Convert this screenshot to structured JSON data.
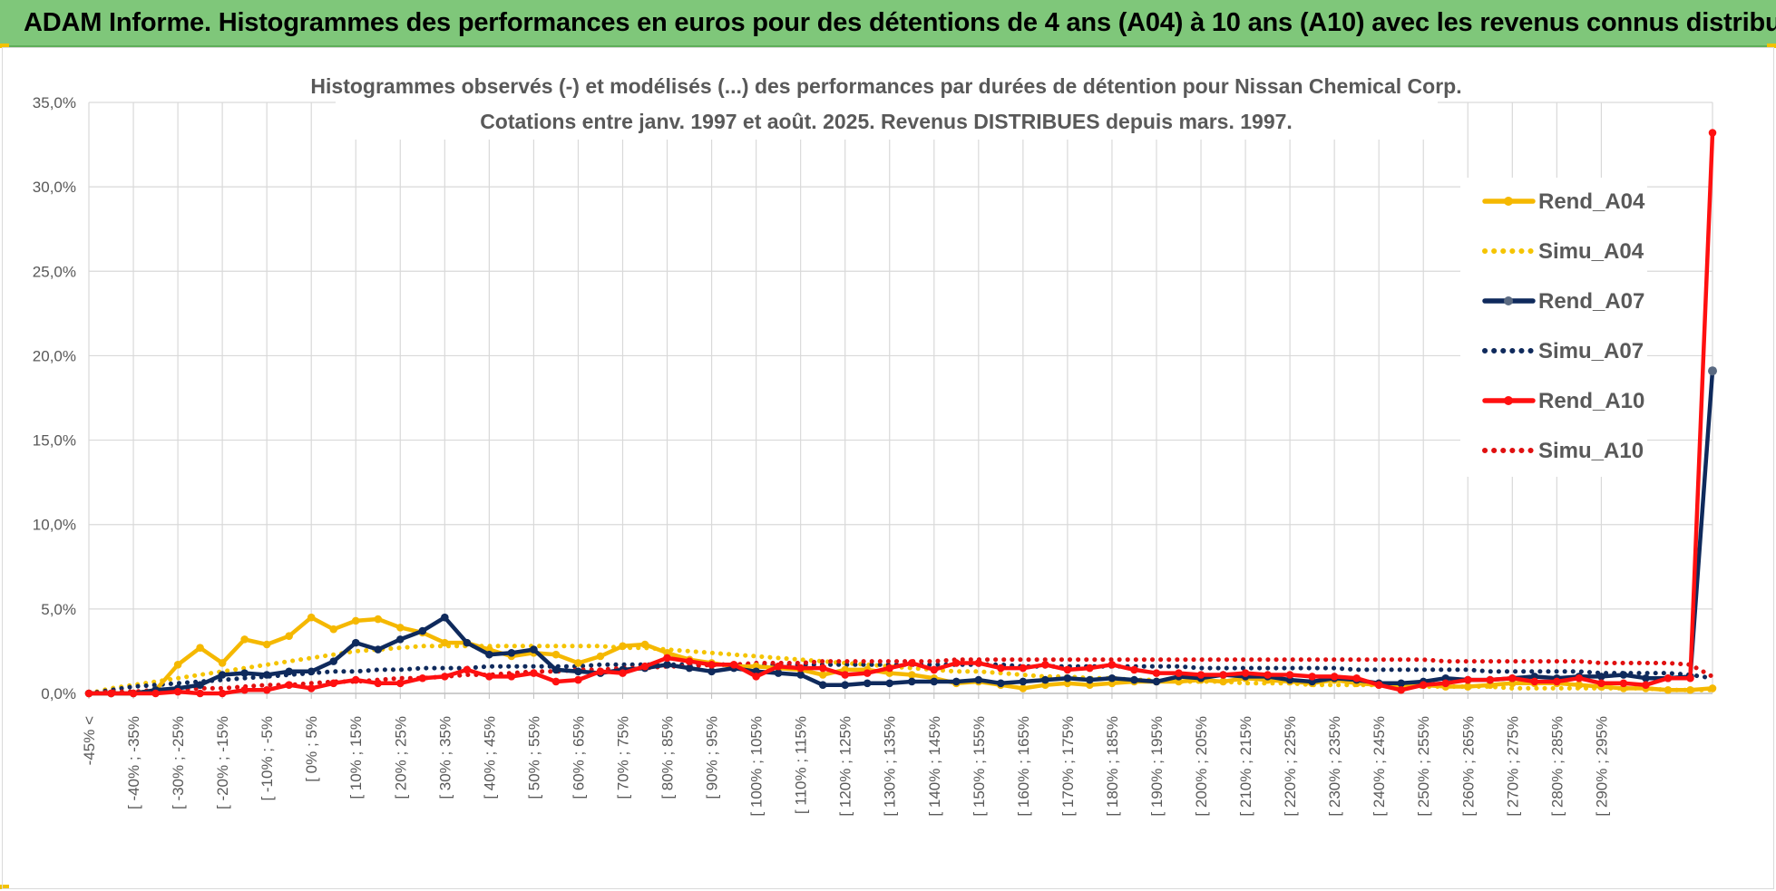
{
  "banner": {
    "title": "ADAM Informe. Histogrammes des performances en euros pour des détentions de 4 ans (A04) à 10 ans (A10) avec les revenus connus distribués"
  },
  "colors": {
    "banner_bg": "#7fc77a",
    "rend_a04": "#f5b800",
    "simu_a04": "#f5c400",
    "rend_a07": "#0f2a5c",
    "simu_a07": "#0f2a5c",
    "rend_a10": "#ff1010",
    "simu_a10": "#e01010",
    "grid": "#d9d9d9"
  },
  "chart_data": {
    "type": "line",
    "title": "Histogrammes observés (-) et modélisés (...) des performances par durées de détention pour Nissan Chemical Corp.",
    "subtitle": "Cotations entre janv. 1997 et août. 2025. Revenus DISTRIBUES depuis mars. 1997.",
    "xlabel": "",
    "ylabel": "",
    "ylim": [
      0,
      35
    ],
    "y_ticks": [
      "0,0%",
      "5,0%",
      "10,0%",
      "15,0%",
      "20,0%",
      "25,0%",
      "30,0%",
      "35,0%"
    ],
    "grid": true,
    "legend_position": "top-right",
    "x_labels": [
      "-45% <",
      "[ -40% ; -35%",
      "[ -30% ; -25%",
      "[ -20% ; -15%",
      "[ -10% ; -5%",
      "[ 0% ; 5%",
      "[ 10% ; 15%",
      "[ 20% ; 25%",
      "[ 30% ; 35%",
      "[ 40% ; 45%",
      "[ 50% ; 55%",
      "[ 60% ; 65%",
      "[ 70% ; 75%",
      "[ 80% ; 85%",
      "[ 90% ; 95%",
      "[ 100% ; 105%",
      "[ 110% ; 115%",
      "[ 120% ; 125%",
      "[ 130% ; 135%",
      "[ 140% ; 145%",
      "[ 150% ; 155%",
      "[ 160% ; 165%",
      "[ 170% ; 175%",
      "[ 180% ; 185%",
      "[ 190% ; 195%",
      "[ 200% ; 205%",
      "[ 210% ; 215%",
      "[ 220% ; 225%",
      "[ 230% ; 235%",
      "[ 240% ; 245%",
      "[ 250% ; 255%",
      "[ 260% ; 265%",
      "[ 270% ; 275%",
      "[ 280% ; 285%",
      "[ 290% ; 295%"
    ],
    "series": [
      {
        "name": "Rend_A04",
        "style": "solid-markers",
        "values": [
          0.0,
          0.0,
          0.0,
          0.2,
          1.7,
          2.7,
          1.8,
          3.2,
          2.9,
          3.4,
          4.5,
          3.8,
          4.3,
          4.4,
          3.9,
          3.6,
          3.0,
          3.0,
          2.6,
          2.2,
          2.4,
          2.3,
          1.8,
          2.2,
          2.8,
          2.9,
          2.4,
          2.0,
          1.8,
          1.6,
          1.6,
          1.5,
          1.4,
          1.1,
          1.4,
          1.4,
          1.2,
          1.1,
          0.9,
          0.6,
          0.7,
          0.5,
          0.3,
          0.5,
          0.6,
          0.5,
          0.6,
          0.7,
          0.7,
          0.7,
          0.8,
          0.7,
          0.9,
          0.8,
          0.7,
          0.6,
          0.8,
          0.6,
          0.5,
          0.4,
          0.5,
          0.4,
          0.4,
          0.5,
          0.6,
          0.6,
          0.6,
          0.5,
          0.4,
          0.3,
          0.3,
          0.2,
          0.2,
          0.3
        ]
      },
      {
        "name": "Simu_A04",
        "style": "dotted",
        "values": [
          0.0,
          0.3,
          0.5,
          0.7,
          0.9,
          1.1,
          1.3,
          1.5,
          1.7,
          1.9,
          2.1,
          2.3,
          2.5,
          2.6,
          2.7,
          2.8,
          2.8,
          2.8,
          2.8,
          2.8,
          2.8,
          2.8,
          2.8,
          2.8,
          2.7,
          2.7,
          2.6,
          2.5,
          2.4,
          2.3,
          2.2,
          2.1,
          2.0,
          1.9,
          1.8,
          1.7,
          1.6,
          1.5,
          1.4,
          1.3,
          1.3,
          1.2,
          1.1,
          1.0,
          1.0,
          0.9,
          0.9,
          0.8,
          0.8,
          0.7,
          0.7,
          0.7,
          0.6,
          0.6,
          0.6,
          0.5,
          0.5,
          0.5,
          0.5,
          0.4,
          0.4,
          0.4,
          0.4,
          0.4,
          0.3,
          0.3,
          0.3,
          0.3,
          0.3,
          0.3,
          0.3,
          0.2,
          0.2,
          0.2
        ]
      },
      {
        "name": "Rend_A07",
        "style": "solid-markers",
        "values": [
          0.0,
          0.0,
          0.0,
          0.2,
          0.3,
          0.5,
          1.1,
          1.2,
          1.1,
          1.3,
          1.3,
          1.9,
          3.0,
          2.6,
          3.2,
          3.7,
          4.5,
          3.0,
          2.3,
          2.4,
          2.6,
          1.4,
          1.3,
          1.2,
          1.4,
          1.5,
          1.7,
          1.5,
          1.3,
          1.5,
          1.3,
          1.2,
          1.1,
          0.5,
          0.5,
          0.6,
          0.6,
          0.7,
          0.7,
          0.7,
          0.8,
          0.6,
          0.7,
          0.8,
          0.9,
          0.8,
          0.9,
          0.8,
          0.7,
          1.0,
          0.9,
          1.1,
          1.0,
          1.0,
          0.8,
          0.7,
          0.9,
          0.8,
          0.6,
          0.6,
          0.7,
          0.9,
          0.8,
          0.8,
          0.9,
          1.0,
          0.9,
          1.0,
          1.0,
          1.1,
          0.9,
          0.9,
          1.0,
          19.1
        ]
      },
      {
        "name": "Simu_A07",
        "style": "dotted",
        "values": [
          0.0,
          0.2,
          0.4,
          0.5,
          0.6,
          0.7,
          0.8,
          0.9,
          1.0,
          1.1,
          1.2,
          1.3,
          1.3,
          1.4,
          1.4,
          1.5,
          1.5,
          1.5,
          1.6,
          1.6,
          1.6,
          1.6,
          1.6,
          1.7,
          1.7,
          1.7,
          1.7,
          1.7,
          1.7,
          1.7,
          1.7,
          1.7,
          1.7,
          1.7,
          1.7,
          1.7,
          1.7,
          1.7,
          1.7,
          1.7,
          1.7,
          1.7,
          1.6,
          1.6,
          1.6,
          1.6,
          1.6,
          1.6,
          1.6,
          1.6,
          1.5,
          1.5,
          1.5,
          1.5,
          1.5,
          1.5,
          1.5,
          1.4,
          1.4,
          1.4,
          1.4,
          1.4,
          1.4,
          1.3,
          1.3,
          1.3,
          1.3,
          1.3,
          1.2,
          1.2,
          1.2,
          1.2,
          1.1,
          0.9
        ]
      },
      {
        "name": "Rend_A10",
        "style": "solid-markers",
        "values": [
          0.0,
          0.0,
          0.0,
          0.0,
          0.1,
          0.0,
          0.0,
          0.2,
          0.2,
          0.5,
          0.3,
          0.6,
          0.8,
          0.6,
          0.6,
          0.9,
          1.0,
          1.4,
          1.0,
          1.0,
          1.2,
          0.7,
          0.8,
          1.3,
          1.2,
          1.6,
          2.1,
          1.9,
          1.7,
          1.7,
          1.0,
          1.6,
          1.5,
          1.5,
          1.1,
          1.2,
          1.5,
          1.8,
          1.4,
          1.8,
          1.8,
          1.5,
          1.5,
          1.7,
          1.4,
          1.5,
          1.7,
          1.4,
          1.2,
          1.2,
          1.1,
          1.1,
          1.2,
          1.1,
          1.1,
          1.0,
          1.0,
          0.9,
          0.5,
          0.2,
          0.5,
          0.6,
          0.8,
          0.8,
          0.9,
          0.7,
          0.7,
          0.9,
          0.6,
          0.6,
          0.5,
          0.9,
          0.9,
          33.2
        ]
      },
      {
        "name": "Simu_A10",
        "style": "dotted",
        "values": [
          0.0,
          0.1,
          0.1,
          0.2,
          0.2,
          0.3,
          0.3,
          0.4,
          0.5,
          0.5,
          0.6,
          0.7,
          0.7,
          0.8,
          0.9,
          0.9,
          1.0,
          1.1,
          1.1,
          1.2,
          1.3,
          1.3,
          1.4,
          1.4,
          1.5,
          1.5,
          1.6,
          1.6,
          1.7,
          1.7,
          1.8,
          1.8,
          1.8,
          1.9,
          1.9,
          1.9,
          1.9,
          1.9,
          1.9,
          2.0,
          2.0,
          2.0,
          2.0,
          2.0,
          2.0,
          2.0,
          2.0,
          2.0,
          2.0,
          2.0,
          2.0,
          2.0,
          2.0,
          2.0,
          2.0,
          2.0,
          2.0,
          2.0,
          2.0,
          2.0,
          2.0,
          1.9,
          1.9,
          1.9,
          1.9,
          1.9,
          1.9,
          1.9,
          1.8,
          1.8,
          1.8,
          1.8,
          1.7,
          1.0
        ]
      }
    ]
  }
}
